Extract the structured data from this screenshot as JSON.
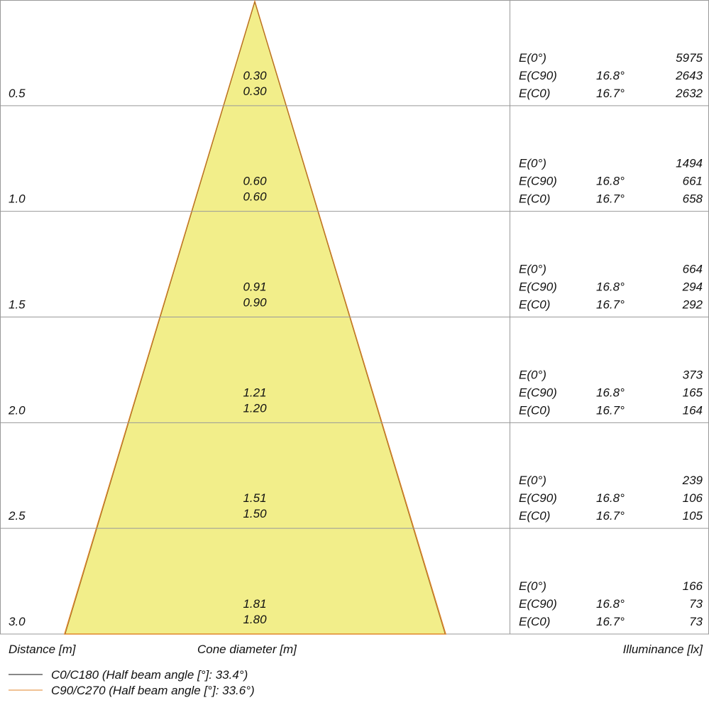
{
  "rows": [
    {
      "distance": "0.5",
      "cone": [
        "0.30",
        "0.30"
      ],
      "illuminance": [
        {
          "label": "E(0°)",
          "value": "5975"
        },
        {
          "label": "E(C90)",
          "angle": "16.8°",
          "value": "2643"
        },
        {
          "label": "E(C0)",
          "angle": "16.7°",
          "value": "2632"
        }
      ]
    },
    {
      "distance": "1.0",
      "cone": [
        "0.60",
        "0.60"
      ],
      "illuminance": [
        {
          "label": "E(0°)",
          "value": "1494"
        },
        {
          "label": "E(C90)",
          "angle": "16.8°",
          "value": "661"
        },
        {
          "label": "E(C0)",
          "angle": "16.7°",
          "value": "658"
        }
      ]
    },
    {
      "distance": "1.5",
      "cone": [
        "0.91",
        "0.90"
      ],
      "illuminance": [
        {
          "label": "E(0°)",
          "value": "664"
        },
        {
          "label": "E(C90)",
          "angle": "16.8°",
          "value": "294"
        },
        {
          "label": "E(C0)",
          "angle": "16.7°",
          "value": "292"
        }
      ]
    },
    {
      "distance": "2.0",
      "cone": [
        "1.21",
        "1.20"
      ],
      "illuminance": [
        {
          "label": "E(0°)",
          "value": "373"
        },
        {
          "label": "E(C90)",
          "angle": "16.8°",
          "value": "165"
        },
        {
          "label": "E(C0)",
          "angle": "16.7°",
          "value": "164"
        }
      ]
    },
    {
      "distance": "2.5",
      "cone": [
        "1.51",
        "1.50"
      ],
      "illuminance": [
        {
          "label": "E(0°)",
          "value": "239"
        },
        {
          "label": "E(C90)",
          "angle": "16.8°",
          "value": "106"
        },
        {
          "label": "E(C0)",
          "angle": "16.7°",
          "value": "105"
        }
      ]
    },
    {
      "distance": "3.0",
      "cone": [
        "1.81",
        "1.80"
      ],
      "illuminance": [
        {
          "label": "E(0°)",
          "value": "166"
        },
        {
          "label": "E(C90)",
          "angle": "16.8°",
          "value": "73"
        },
        {
          "label": "E(C0)",
          "angle": "16.7°",
          "value": "73"
        }
      ]
    }
  ],
  "footer": {
    "distance": "Distance [m]",
    "cone": "Cone diameter [m]",
    "illuminance": "Illuminance [lx]"
  },
  "legend": [
    "C0/C180 (Half beam angle [°]: 33.4°)",
    "C90/C270 (Half beam angle [°]: 33.6°)"
  ]
}
